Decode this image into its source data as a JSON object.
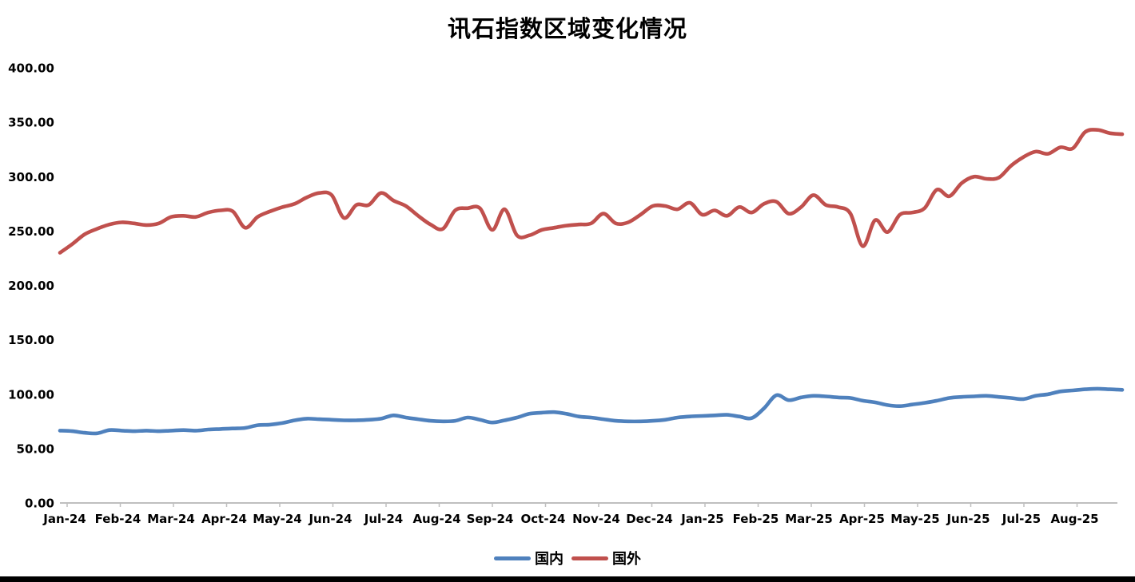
{
  "chart_data": {
    "type": "line",
    "title": "讯石指数区域变化情况",
    "xlabel": "",
    "ylabel": "",
    "ylim": [
      0,
      400
    ],
    "y_tick_labels": [
      "400.00",
      "350.00",
      "300.00",
      "250.00",
      "200.00",
      "150.00",
      "100.00",
      "50.00",
      "0.00"
    ],
    "x_tick_labels": [
      "Jan-24",
      "Feb-24",
      "Mar-24",
      "Apr-24",
      "May-24",
      "Jun-24",
      "Jul-24",
      "Aug-24",
      "Sep-24",
      "Oct-24",
      "Nov-24",
      "Dec-24",
      "Jan-25",
      "Feb-25",
      "Mar-25",
      "Apr-25",
      "May-25",
      "Jun-25",
      "Jul-25",
      "Aug-25"
    ],
    "grid": false,
    "legend_position": "bottom",
    "axis_color": "#BFBFBF",
    "text_color": "#000000",
    "series": [
      {
        "name": "国内",
        "color": "#4F81BD",
        "values": [
          66.5,
          66,
          64.5,
          64,
          67,
          66.5,
          66,
          66.5,
          66,
          66.5,
          67,
          66.5,
          67.5,
          68,
          68.5,
          69,
          71.5,
          72,
          73.5,
          76,
          77.5,
          77,
          76.5,
          76,
          76,
          76.5,
          77.5,
          80.5,
          78.5,
          77,
          75.5,
          75,
          75.5,
          78.5,
          76.5,
          74,
          76,
          78.5,
          82,
          83,
          83.5,
          82,
          79.5,
          78.5,
          77,
          75.5,
          75,
          75,
          75.5,
          76.5,
          78.5,
          79.5,
          80,
          80.5,
          81,
          79.5,
          78,
          87,
          99,
          94.5,
          97,
          98.5,
          98,
          97,
          96.5,
          94,
          92.5,
          90,
          89,
          90.5,
          92,
          94,
          96.5,
          97.5,
          98,
          98.5,
          97.5,
          96.5,
          95.5,
          98.5,
          100,
          102.5,
          103.5,
          104.5,
          105,
          104.5,
          104
        ]
      },
      {
        "name": "国外",
        "color": "#C0504D",
        "values": [
          230,
          238,
          247,
          252,
          256,
          258,
          257,
          255.5,
          257,
          263,
          264,
          263,
          267,
          269,
          268,
          253,
          263,
          268,
          272,
          275,
          281,
          285,
          283,
          262,
          274,
          274,
          285,
          278,
          273,
          264,
          256,
          252,
          269,
          271,
          271,
          251,
          270,
          246,
          246,
          251,
          253,
          255,
          256,
          257,
          266,
          257,
          258,
          265,
          273,
          273,
          270,
          276,
          265,
          269,
          264,
          272,
          267,
          275,
          277,
          266,
          272,
          283,
          274,
          272,
          266,
          236,
          260,
          249,
          265,
          267,
          271,
          288,
          282,
          294,
          300,
          298,
          299,
          310,
          318,
          323,
          321,
          327,
          326,
          341,
          343,
          340,
          339
        ]
      }
    ]
  },
  "footer": {
    "bar_color": "#000000"
  }
}
